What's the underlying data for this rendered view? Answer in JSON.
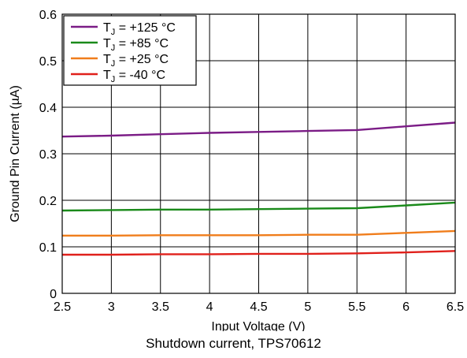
{
  "chart_data": {
    "type": "line",
    "xlabel": "Input Voltage (V)",
    "ylabel": "Ground Pin Current (µA)",
    "xlim": [
      2.5,
      6.5
    ],
    "ylim": [
      0,
      0.6
    ],
    "x_ticks": [
      "2.5",
      "3",
      "3.5",
      "4",
      "4.5",
      "5",
      "5.5",
      "6",
      "6.5"
    ],
    "y_ticks": [
      "0",
      "0.1",
      "0.2",
      "0.3",
      "0.4",
      "0.5",
      "0.6"
    ],
    "grid": true,
    "legend_position": "top-left",
    "x": [
      2.5,
      3,
      3.5,
      4,
      4.5,
      5,
      5.5,
      6,
      6.5
    ],
    "series": [
      {
        "name": "+125 °C",
        "color": "#7B1C86",
        "values": [
          0.337,
          0.339,
          0.342,
          0.345,
          0.347,
          0.349,
          0.351,
          0.359,
          0.367
        ]
      },
      {
        "name": "+85 °C",
        "color": "#1A8A1A",
        "values": [
          0.178,
          0.179,
          0.18,
          0.18,
          0.181,
          0.182,
          0.183,
          0.189,
          0.195
        ]
      },
      {
        "name": "+25 °C",
        "color": "#F07D1B",
        "values": [
          0.124,
          0.124,
          0.125,
          0.125,
          0.125,
          0.126,
          0.126,
          0.13,
          0.134
        ]
      },
      {
        "name": "-40 °C",
        "color": "#E0201B",
        "values": [
          0.083,
          0.083,
          0.084,
          0.084,
          0.085,
          0.085,
          0.086,
          0.088,
          0.091
        ]
      }
    ]
  },
  "legend_prefix_main": "T",
  "legend_prefix_sub": "J",
  "caption": "Shutdown current, TPS70612"
}
